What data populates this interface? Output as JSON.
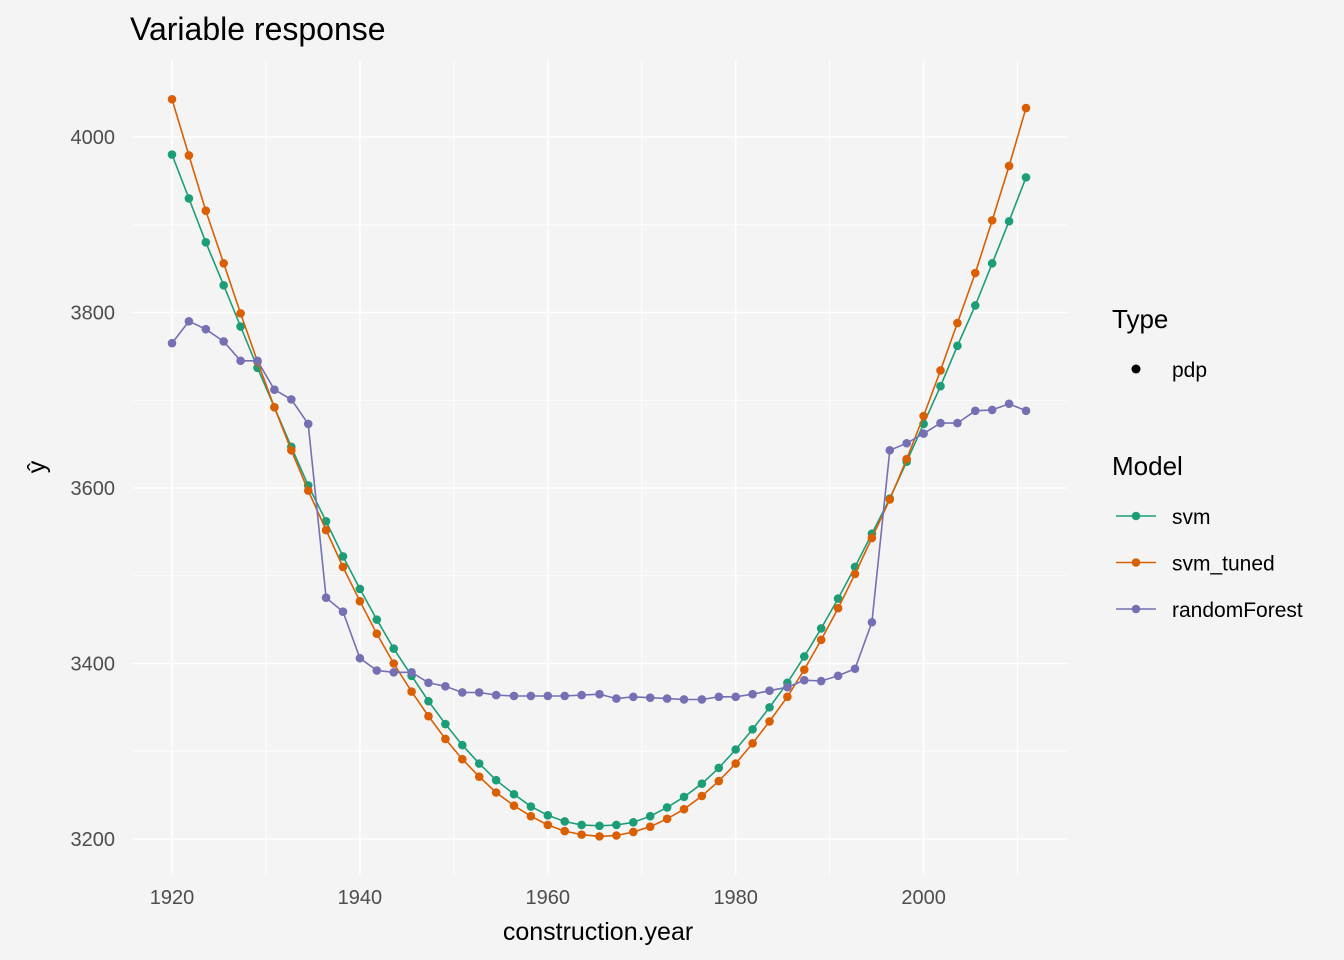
{
  "chart_data": {
    "type": "line",
    "title": "Variable response",
    "xlabel": "construction.year",
    "ylabel": "ŷ",
    "xlim": [
      1915,
      2015
    ],
    "ylim": [
      3180,
      4070
    ],
    "xticks": [
      1920,
      1940,
      1960,
      1980,
      2000
    ],
    "yticks": [
      3200,
      3400,
      3600,
      3800,
      4000
    ],
    "grid": true,
    "legend_position": "right",
    "legend": {
      "type_title": "Type",
      "type_entries": [
        "pdp"
      ],
      "model_title": "Model"
    },
    "x": [
      1920,
      1921.8,
      1923.6,
      1925.5,
      1927.3,
      1929.1,
      1930.9,
      1932.7,
      1934.5,
      1936.4,
      1938.2,
      1940,
      1941.8,
      1943.6,
      1945.5,
      1947.3,
      1949.1,
      1950.9,
      1952.7,
      1954.5,
      1956.4,
      1958.2,
      1960,
      1961.8,
      1963.6,
      1965.5,
      1967.3,
      1969.1,
      1970.9,
      1972.7,
      1974.5,
      1976.4,
      1978.2,
      1980,
      1981.8,
      1983.6,
      1985.5,
      1987.3,
      1989.1,
      1990.9,
      1992.7,
      1994.5,
      1996.4,
      1998.2,
      2000,
      2001.8,
      2003.6,
      2005.5,
      2007.3,
      2009.1,
      2010.9
    ],
    "series": [
      {
        "name": "svm",
        "color": "#1b9e77",
        "values": [
          3980,
          3930,
          3880,
          3831,
          3784,
          3737,
          3692,
          3647,
          3603,
          3562,
          3522,
          3485,
          3450,
          3417,
          3386,
          3357,
          3331,
          3307,
          3286,
          3267,
          3251,
          3237,
          3227,
          3220,
          3216,
          3215,
          3216,
          3219,
          3226,
          3236,
          3248,
          3263,
          3281,
          3302,
          3325,
          3350,
          3378,
          3408,
          3440,
          3474,
          3510,
          3548,
          3588,
          3630,
          3673,
          3716,
          3762,
          3808,
          3856,
          3904,
          3954
        ]
      },
      {
        "name": "svm_tuned",
        "color": "#d95f02",
        "values": [
          4043,
          3979,
          3916,
          3856,
          3799,
          3744,
          3692,
          3643,
          3597,
          3552,
          3510,
          3471,
          3434,
          3400,
          3368,
          3340,
          3314,
          3291,
          3271,
          3253,
          3238,
          3226,
          3216,
          3209,
          3205,
          3203,
          3204,
          3208,
          3214,
          3223,
          3234,
          3249,
          3266,
          3286,
          3309,
          3334,
          3362,
          3393,
          3427,
          3463,
          3502,
          3543,
          3587,
          3633,
          3682,
          3734,
          3788,
          3845,
          3905,
          3967,
          4033
        ]
      },
      {
        "name": "randomForest",
        "color": "#7570b3",
        "x": [
          1920,
          1921.8,
          1923.6,
          1925.5,
          1927.3,
          1929.1,
          1930.9,
          1932.7,
          1934.5,
          1936.4,
          1938.2,
          1940,
          1941.8,
          1943.6,
          1945.5,
          1947.3,
          1949.1,
          1950.9,
          1952.7,
          1954.5,
          1956.4,
          1958.2,
          1960,
          1961.8,
          1963.6,
          1965.5,
          1967.3,
          1969.1,
          1970.9,
          1972.7,
          1974.5,
          1976.4,
          1978.2,
          1980,
          1981.8,
          1983.6,
          1985.5,
          1987.3,
          1989.1,
          1990.9,
          1992.7,
          1994.5,
          1996.4,
          1998.2,
          2000,
          2001.8,
          2003.6,
          2005.5,
          2007.3,
          2009.1,
          2010.9
        ],
        "values": [
          3765,
          3790,
          3781,
          3767,
          3745,
          3745,
          3712,
          3701,
          3673,
          3475,
          3459,
          3406,
          3392,
          3390,
          3390,
          3378,
          3374,
          3367,
          3367,
          3364,
          3363,
          3363,
          3363,
          3363,
          3364,
          3365,
          3360,
          3362,
          3361,
          3360,
          3359,
          3359,
          3362,
          3362,
          3365,
          3369,
          3373,
          3381,
          3380,
          3386,
          3394,
          3447,
          3643,
          3651,
          3662,
          3674,
          3674,
          3688,
          3689,
          3696,
          3688
        ]
      }
    ]
  }
}
